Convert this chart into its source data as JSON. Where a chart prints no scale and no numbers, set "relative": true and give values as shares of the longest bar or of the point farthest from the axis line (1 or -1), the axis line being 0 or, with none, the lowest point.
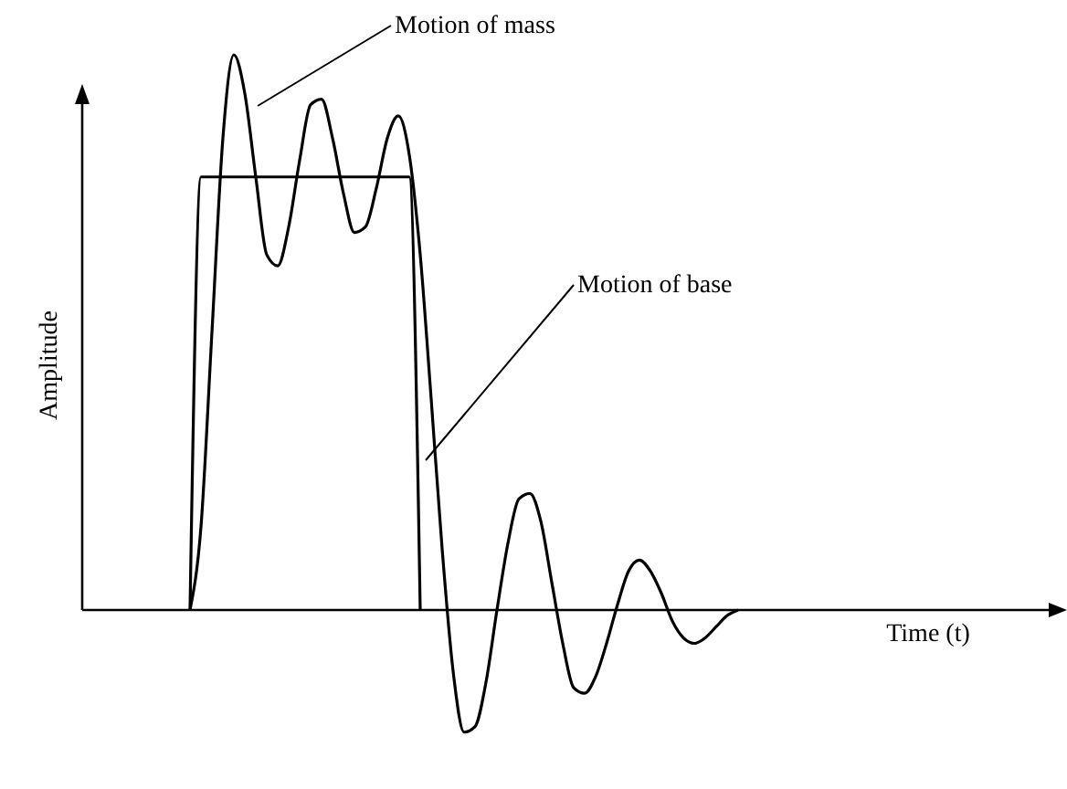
{
  "chart_data": {
    "type": "line",
    "relative": true,
    "xlabel": "Time (t)",
    "ylabel": "Amplitude",
    "marker": "none",
    "line_style": "solid",
    "categories": [
      null,
      null,
      null,
      null,
      null,
      null,
      null,
      null,
      null,
      null,
      null,
      null,
      null,
      null,
      null,
      null,
      null,
      null,
      null,
      null,
      null,
      null,
      null,
      null,
      null,
      null,
      null,
      null,
      null,
      null,
      null,
      null,
      null,
      null,
      null,
      null,
      null,
      null,
      null,
      null,
      null,
      null,
      null,
      null,
      null,
      null,
      null,
      null,
      null,
      null,
      null,
      null,
      null,
      null,
      null,
      null,
      null,
      null,
      null,
      null,
      null,
      null,
      null,
      null,
      null,
      null,
      null,
      null,
      null,
      null,
      null,
      null,
      null,
      null,
      null,
      null,
      null,
      null,
      null,
      null,
      null,
      null,
      null,
      null,
      null,
      null,
      null,
      null
    ],
    "series": [
      {
        "color": "#000000",
        "values": [
          null,
          null,
          null,
          null,
          null,
          null,
          null,
          null,
          null,
          0,
          0.15,
          0.5,
          0.85,
          1,
          0.93,
          0.78,
          0.64,
          0.62,
          0.69,
          0.81,
          0.91,
          0.92,
          0.85,
          0.75,
          0.68,
          0.69,
          0.76,
          0.85,
          0.89,
          0.82,
          0.64,
          0.38,
          0.11,
          -0.11,
          -0.22,
          -0.21,
          -0.13,
          0,
          0.12,
          0.2,
          0.21,
          0.16,
          0.05,
          -0.06,
          -0.14,
          -0.15,
          -0.12,
          -0.06,
          0.01,
          0.07,
          0.09,
          0.07,
          0.03,
          -0.02,
          -0.05,
          -0.06,
          -0.05,
          -0.03,
          -0.01,
          0,
          null,
          null,
          null,
          null,
          null,
          null,
          null,
          null,
          null,
          null,
          null,
          null,
          null,
          null,
          null,
          null,
          null,
          null,
          null,
          null,
          null,
          null,
          null,
          null,
          null,
          null,
          null,
          null
        ]
      },
      {
        "color": "#000000",
        "values": [
          null,
          null,
          null,
          null,
          null,
          null,
          null,
          null,
          null,
          0,
          0.78,
          0.78,
          0.78,
          0.78,
          0.78,
          0.78,
          0.78,
          0.78,
          0.78,
          0.78,
          0.78,
          0.78,
          0.78,
          0.78,
          0.78,
          0.78,
          0.78,
          0.78,
          0.78,
          0.78,
          0,
          null,
          null,
          null,
          null,
          null,
          null,
          null,
          null,
          null,
          null,
          null,
          null,
          null,
          null,
          null,
          null,
          null,
          null,
          null,
          null,
          null,
          null,
          null,
          null,
          null,
          null,
          null,
          null,
          null,
          null,
          null,
          null,
          null,
          null,
          null,
          null,
          null,
          null,
          null,
          null,
          null,
          null,
          null,
          null,
          null,
          null,
          null,
          null,
          null,
          null,
          null,
          null,
          null,
          null,
          null,
          null,
          null
        ]
      }
    ],
    "annotations": [
      "Motion of mass",
      "Motion of base"
    ]
  }
}
